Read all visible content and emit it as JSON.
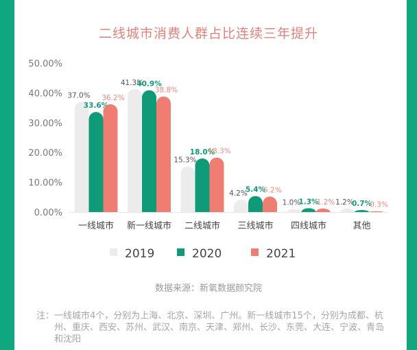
{
  "chart_data": {
    "type": "bar",
    "title": "二线城市消费人群占比连续三年提升",
    "categories": [
      "一线城市",
      "新一线城市",
      "二线城市",
      "三线城市",
      "四线城市",
      "其他"
    ],
    "series": [
      {
        "name": "2019",
        "color": "#ececec",
        "label_color": "#555555",
        "values": [
          37.0,
          41.3,
          15.3,
          4.2,
          1.0,
          1.2
        ],
        "labels": [
          "37.0%",
          "41.3%",
          "15.3%",
          "4.2%",
          "1.0%",
          "1.2%"
        ]
      },
      {
        "name": "2020",
        "color": "#0f9a78",
        "label_color": "#119c78",
        "values": [
          33.6,
          40.9,
          18.0,
          5.4,
          1.3,
          0.7
        ],
        "labels": [
          "33.6%",
          "40.9%",
          "18.0%",
          "5.4%",
          "1.3%",
          "0.7%"
        ]
      },
      {
        "name": "2021",
        "color": "#f07d72",
        "label_color": "#e8897f",
        "values": [
          36.2,
          38.8,
          18.3,
          5.2,
          1.2,
          0.3
        ],
        "labels": [
          "36.2%",
          "38.8%",
          "18.3%",
          "5.2%",
          "1.2%",
          "0.3%"
        ]
      }
    ],
    "yticks": [
      "0.00%",
      "10.00%",
      "20.00%",
      "30.00%",
      "40.00%",
      "50.00%"
    ],
    "ylim": [
      0,
      50
    ],
    "xlabel": "",
    "ylabel": "",
    "legend_position": "bottom",
    "grid": false
  },
  "source": "数据来源：新氧数据颜究院",
  "note_label": "注：",
  "note_text": "一线城市4个，分别为上海、北京、深圳、广州。新一线城市15个，分别为成都、杭州、重庆、西安、苏州、武汉、南京、天津、郑州、长沙、东莞、大连、宁波、青岛和沈阳"
}
